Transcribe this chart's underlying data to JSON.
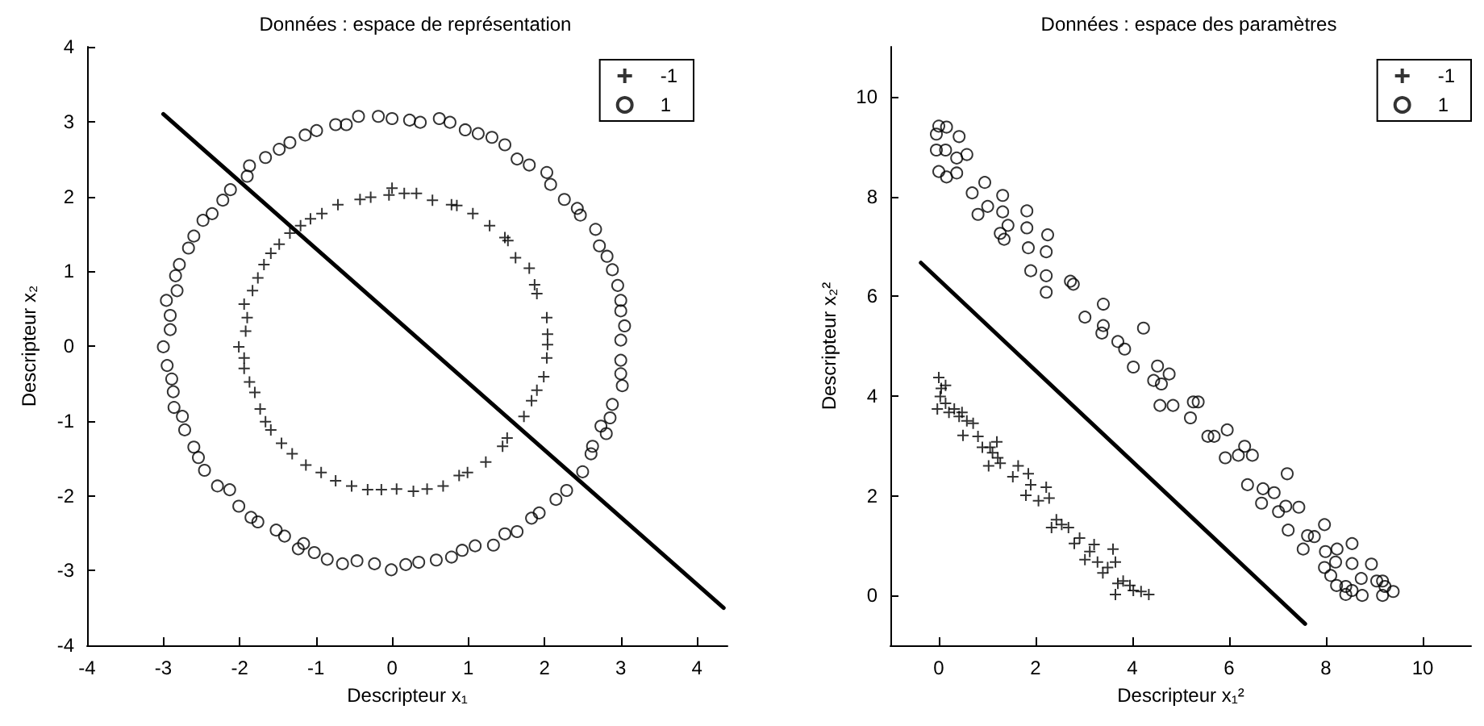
{
  "chart_data": [
    {
      "type": "scatter",
      "title": "Données : espace de représentation",
      "xlabel": "Descripteur x₁",
      "ylabel": "Descripteur x₂",
      "xlim": [
        -4,
        4.4
      ],
      "xticks": [
        -4,
        -3,
        -2,
        -1,
        0,
        1,
        2,
        3,
        4
      ],
      "ylim": [
        -4,
        4
      ],
      "yticks": [
        -4,
        -3,
        -2,
        -1,
        0,
        1,
        2,
        3,
        4
      ],
      "legend": "top right",
      "series": [
        {
          "name": "-1",
          "color": "#000000",
          "marker": "cross",
          "x": [
            0,
            -0.04,
            0.16,
            0.32,
            0.53,
            0.78,
            0.85,
            1.06,
            1.28,
            1.48,
            1.52,
            1.62,
            1.8,
            1.87,
            1.9,
            2.03,
            2.04,
            2.04,
            2.03,
            1.99,
            1.9,
            1.83,
            1.73,
            1.51,
            1.45,
            1.23,
            0.99,
            0.88,
            0.67,
            0.46,
            0.28,
            0.06,
            -0.14,
            -0.32,
            -0.53,
            -0.74,
            -0.93,
            -1.13,
            -1.31,
            -1.45,
            -1.59,
            -1.66,
            -1.73,
            -1.8,
            -1.87,
            -1.94,
            -1.94,
            -2.01,
            -1.92,
            -1.9,
            -1.94,
            -1.83,
            -1.76,
            -1.68,
            -1.59,
            -1.48,
            -1.34,
            -1.2,
            -1.07,
            -0.92,
            -0.71,
            -0.42,
            -0.28
          ],
          "values": [
            2.11,
            2.02,
            2.04,
            2.04,
            1.95,
            1.89,
            1.88,
            1.77,
            1.61,
            1.45,
            1.41,
            1.18,
            1.04,
            0.82,
            0.7,
            0.38,
            0.16,
            0.02,
            -0.16,
            -0.41,
            -0.59,
            -0.73,
            -0.94,
            -1.23,
            -1.34,
            -1.55,
            -1.69,
            -1.73,
            -1.87,
            -1.91,
            -1.94,
            -1.91,
            -1.92,
            -1.92,
            -1.87,
            -1.8,
            -1.69,
            -1.59,
            -1.44,
            -1.3,
            -1.12,
            -1.01,
            -0.84,
            -0.62,
            -0.48,
            -0.3,
            -0.16,
            -0.01,
            0.2,
            0.38,
            0.56,
            0.74,
            0.91,
            1.09,
            1.24,
            1.36,
            1.51,
            1.61,
            1.7,
            1.77,
            1.89,
            1.96,
            1.99
          ]
        },
        {
          "name": "1",
          "color": "#000000",
          "marker": "circle",
          "x": [
            -0.44,
            -0.18,
            0,
            0.23,
            0.37,
            0.62,
            0.76,
            0.96,
            1.13,
            1.31,
            1.48,
            1.64,
            1.8,
            2.03,
            2.08,
            2.26,
            2.43,
            2.47,
            2.67,
            2.72,
            2.82,
            2.89,
            2.96,
            3,
            3,
            3.05,
            3,
            3,
            3,
            3.02,
            2.89,
            2.86,
            2.74,
            2.81,
            2.63,
            2.61,
            2.5,
            2.29,
            2.15,
            1.93,
            1.83,
            1.64,
            1.48,
            1.33,
            1.09,
            0.92,
            0.78,
            0.58,
            0.35,
            0.18,
            -0.01,
            -0.23,
            -0.46,
            -0.65,
            -0.85,
            -1.02,
            -1.16,
            -1.23,
            -1.41,
            -1.52,
            -1.76,
            -1.85,
            -2.01,
            -2.13,
            -2.29,
            -2.46,
            -2.54,
            -2.6,
            -2.72,
            -2.75,
            -2.86,
            -2.87,
            -2.89,
            -2.95,
            -3,
            -2.91,
            -2.91,
            -2.96,
            -2.82,
            -2.84,
            -2.79,
            -2.67,
            -2.6,
            -2.48,
            -2.36,
            -2.22,
            -2.12,
            -1.9,
            -1.87,
            -1.66,
            -1.48,
            -1.34,
            -1.14,
            -0.99,
            -0.74,
            -0.6
          ],
          "values": [
            3.07,
            3.07,
            3.04,
            3.02,
            2.99,
            3.04,
            2.99,
            2.89,
            2.84,
            2.79,
            2.69,
            2.5,
            2.42,
            2.32,
            2.16,
            1.96,
            1.84,
            1.75,
            1.56,
            1.34,
            1.2,
            1.02,
            0.81,
            0.61,
            0.47,
            0.27,
            0.08,
            -0.19,
            -0.37,
            -0.53,
            -0.78,
            -0.96,
            -1.07,
            -1.17,
            -1.34,
            -1.44,
            -1.68,
            -1.93,
            -2.05,
            -2.23,
            -2.3,
            -2.48,
            -2.51,
            -2.66,
            -2.67,
            -2.73,
            -2.82,
            -2.86,
            -2.89,
            -2.92,
            -2.99,
            -2.91,
            -2.87,
            -2.91,
            -2.85,
            -2.76,
            -2.64,
            -2.71,
            -2.54,
            -2.46,
            -2.35,
            -2.29,
            -2.14,
            -1.92,
            -1.87,
            -1.66,
            -1.49,
            -1.35,
            -1.12,
            -0.94,
            -0.82,
            -0.61,
            -0.44,
            -0.26,
            -0.01,
            0.22,
            0.41,
            0.61,
            0.74,
            0.94,
            1.09,
            1.31,
            1.47,
            1.68,
            1.77,
            1.95,
            2.09,
            2.27,
            2.41,
            2.52,
            2.63,
            2.72,
            2.82,
            2.88,
            2.96,
            2.96
          ]
        },
        {
          "type": "line",
          "color": "#000000",
          "marker": "none",
          "line_style": "solid",
          "x": [
            -3,
            4.35
          ],
          "values": [
            3.1,
            -3.5
          ]
        }
      ]
    },
    {
      "type": "scatter",
      "title": "Données : espace des paramètres",
      "xlabel": "Descripteur x₁²",
      "ylabel": "Descripteur x₂²",
      "xlim": [
        -1,
        11
      ],
      "xticks": [
        0,
        2,
        4,
        6,
        8,
        10
      ],
      "ylim": [
        -1,
        11
      ],
      "yticks": [
        0,
        2,
        4,
        6,
        8,
        10
      ],
      "legend": "top right",
      "series": [
        {
          "name": "-1",
          "color": "#000000",
          "marker": "cross",
          "x": [
            0,
            0.05,
            0.14,
            0.03,
            -0.03,
            0.14,
            0.21,
            0.32,
            0.42,
            0.48,
            0.5,
            0.58,
            0.71,
            0.81,
            0.9,
            1.06,
            1.2,
            1.11,
            1.03,
            1.27,
            1.22,
            1.53,
            1.64,
            1.8,
            1.85,
            1.9,
            2.06,
            2.22,
            2.28,
            2.33,
            2.43,
            2.54,
            2.68,
            2.8,
            2.91,
            3.02,
            3.12,
            3.21,
            3.28,
            3.39,
            3.49,
            3.6,
            3.65,
            3.65,
            3.7,
            3.81,
            3.95,
            4.02,
            4.18,
            4.34
          ],
          "values": [
            4.37,
            4.15,
            4.21,
            3.99,
            3.74,
            3.85,
            3.67,
            3.74,
            3.59,
            3.67,
            3.21,
            3.5,
            3.45,
            3.19,
            2.97,
            2.97,
            3.08,
            2.86,
            2.6,
            2.65,
            2.76,
            2.38,
            2.6,
            2.01,
            2.44,
            2.22,
            1.9,
            2.17,
            1.95,
            1.36,
            1.52,
            1.42,
            1.36,
            1.04,
            1.15,
            0.72,
            0.88,
            1.02,
            0.67,
            0.45,
            0.56,
            0.93,
            0.67,
            0.02,
            0.24,
            0.29,
            0.2,
            0.1,
            0.08,
            0.02
          ]
        },
        {
          "name": "1",
          "color": "#000000",
          "marker": "circle",
          "x": [
            0,
            0.16,
            -0.05,
            0.42,
            0.58,
            -0.05,
            0.14,
            0.37,
            0,
            0.16,
            0.37,
            0.69,
            0.95,
            0.81,
            1.01,
            1.32,
            1.32,
            1.43,
            1.27,
            1.35,
            1.82,
            1.82,
            1.85,
            2.25,
            2.22,
            1.9,
            2.22,
            2.22,
            2.72,
            2.78,
            3.02,
            3.4,
            3.4,
            3.37,
            3.7,
            3.84,
            4.23,
            4.02,
            4.52,
            4.44,
            4.76,
            4.6,
            4.57,
            4.84,
            5.2,
            5.26,
            5.36,
            5.56,
            5.69,
            5.96,
            5.92,
            6.19,
            6.32,
            6.48,
            6.38,
            6.7,
            6.67,
            6.93,
            7.02,
            7.17,
            7.44,
            7.2,
            7.22,
            7.62,
            7.76,
            7.53,
            7.97,
            7.99,
            7.97,
            8.1,
            8.23,
            8.2,
            8.22,
            8.41,
            8.41,
            8.54,
            8.54,
            8.54,
            8.73,
            8.75,
            8.94,
            9.05,
            9.17,
            9.17,
            9.22,
            9.39
          ],
          "values": [
            9.41,
            9.39,
            9.25,
            9.2,
            8.84,
            8.93,
            8.93,
            8.77,
            8.5,
            8.39,
            8.47,
            8.07,
            8.28,
            7.64,
            7.8,
            8.02,
            7.69,
            7.42,
            7.26,
            7.14,
            7.71,
            7.37,
            6.97,
            7.23,
            6.89,
            6.51,
            6.41,
            6.08,
            6.3,
            6.24,
            5.58,
            5.84,
            5.41,
            5.26,
            5.09,
            4.94,
            5.36,
            4.58,
            4.6,
            4.31,
            4.44,
            4.24,
            3.81,
            3.81,
            3.56,
            3.88,
            3.88,
            3.19,
            3.19,
            3.32,
            2.76,
            2.81,
            2.99,
            2.81,
            2.22,
            2.14,
            1.85,
            2.06,
            1.68,
            1.79,
            1.77,
            2.44,
            1.31,
            1.2,
            1.18,
            0.93,
            1.42,
            0.88,
            0.56,
            0.4,
            0.93,
            0.67,
            0.2,
            0.18,
            0.02,
            0.1,
            1.04,
            0.64,
            0.34,
            0,
            0.63,
            0.29,
            0.29,
            0,
            0.18,
            0.08
          ]
        },
        {
          "type": "line",
          "color": "#000000",
          "marker": "none",
          "line_style": "solid",
          "x": [
            -0.37,
            7.57
          ],
          "values": [
            6.67,
            -0.57
          ]
        }
      ]
    }
  ]
}
